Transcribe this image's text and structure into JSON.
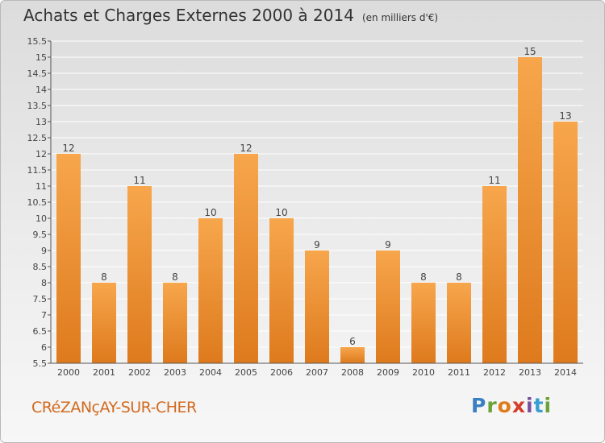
{
  "header": {
    "title": "Achats et Charges Externes 2000 à 2014",
    "subtitle": "(en milliers d'€)"
  },
  "footer": {
    "commune": "CRéZANçAY-SUR-CHER",
    "logo_letters": [
      "P",
      "r",
      "o",
      "x",
      "i",
      "t",
      "i"
    ],
    "logo_colors": [
      "#3a7fc2",
      "#6aa23a",
      "#e07b1a",
      "#d43d2a",
      "#7a4fa0",
      "#3a9ed0",
      "#6aa23a"
    ]
  },
  "colors": {
    "bar_light": "#f7a64c",
    "bar_dark": "#de7a1d",
    "grid": "#ffffff",
    "axis": "#555555",
    "text": "#444444"
  },
  "chart_data": {
    "type": "bar",
    "title": "Achats et Charges Externes 2000 à 2014",
    "subtitle": "(en milliers d'€)",
    "categories": [
      "2000",
      "2001",
      "2002",
      "2003",
      "2004",
      "2005",
      "2006",
      "2007",
      "2008",
      "2009",
      "2010",
      "2011",
      "2012",
      "2013",
      "2014"
    ],
    "values": [
      12,
      8,
      11,
      8,
      10,
      12,
      10,
      9,
      6,
      9,
      8,
      8,
      11,
      15,
      13
    ],
    "labels": [
      "12",
      "8",
      "11",
      "8",
      "10",
      "12",
      "10",
      "9",
      "6",
      "9",
      "8",
      "8",
      "11",
      "15",
      "13"
    ],
    "ylim": [
      5.5,
      15.5
    ],
    "yticks": [
      "5.5",
      "6",
      "6.5",
      "7",
      "7.5",
      "8",
      "8.5",
      "9",
      "9.5",
      "10",
      "10.5",
      "11",
      "11.5",
      "12",
      "12.5",
      "13",
      "13.5",
      "14",
      "14.5",
      "15",
      "15.5"
    ],
    "xlabel": "",
    "ylabel": "",
    "grid": true
  }
}
